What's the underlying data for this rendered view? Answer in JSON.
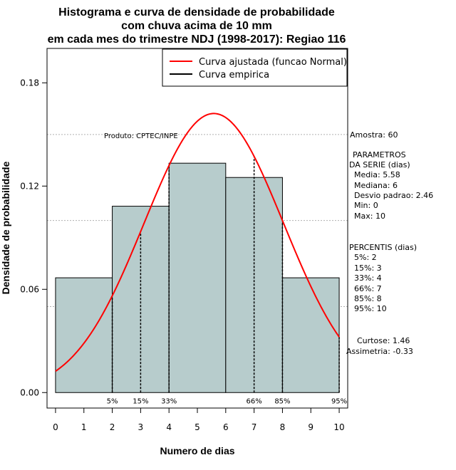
{
  "chart_data": {
    "type": "bar",
    "title": [
      "Histograma e curva de densidade de probabilidade",
      "com chuva acima de 10 mm",
      "em cada mes do trimestre NDJ (1998-2017): Regiao 116"
    ],
    "xlabel": "Numero de dias",
    "ylabel": "Densidade de probabilidade",
    "xlim": [
      -0.3,
      10.3
    ],
    "ylim": [
      -0.009,
      0.2
    ],
    "x_ticks": [
      0,
      1,
      2,
      3,
      4,
      5,
      6,
      7,
      8,
      9,
      10
    ],
    "y_ticks": [
      0.0,
      0.06,
      0.12,
      0.18
    ],
    "y_tick_labels": [
      "0.00",
      "0.06",
      "0.12",
      "0.18"
    ],
    "grid_y": [
      0.05,
      0.1,
      0.15,
      0.2
    ],
    "histogram": {
      "bins": [
        [
          0,
          2
        ],
        [
          2,
          4
        ],
        [
          4,
          6
        ],
        [
          6,
          8
        ],
        [
          8,
          10
        ]
      ],
      "density": [
        0.0667,
        0.1083,
        0.1333,
        0.125,
        0.0667
      ],
      "fill": "#b7cccc"
    },
    "normal_curve": {
      "name": "Curva ajustada (funcao Normal)",
      "mean": 5.58,
      "sd": 2.46,
      "color": "#ff0000"
    },
    "empirical_curve": {
      "name": "Curva empirica",
      "color": "#000000"
    },
    "percentile_markers": [
      {
        "x": 2,
        "label": "5%"
      },
      {
        "x": 3,
        "label": "15%"
      },
      {
        "x": 4,
        "label": "33%"
      },
      {
        "x": 7,
        "label": "66%"
      },
      {
        "x": 8,
        "label": "85%"
      },
      {
        "x": 10,
        "label": "95%"
      }
    ],
    "legend_position": "top-right",
    "annotations": {
      "product": "Produto: CPTEC/INPE",
      "sample": "Amostra: 60",
      "params_title": [
        "PARAMETROS",
        "DA SERIE (dias)"
      ],
      "params": [
        "Media: 5.58",
        "Mediana: 6",
        "Desvio padrao: 2.46",
        "Min: 0",
        "Max: 10"
      ],
      "percentis_title": "PERCENTIS (dias)",
      "percentis": [
        "5%: 2",
        "15%: 3",
        "33%: 4",
        "66%: 7",
        "85%: 8",
        "95%: 10"
      ],
      "curtose": "Curtose: 1.46",
      "assimetria": "Assimetria: -0.33"
    }
  }
}
